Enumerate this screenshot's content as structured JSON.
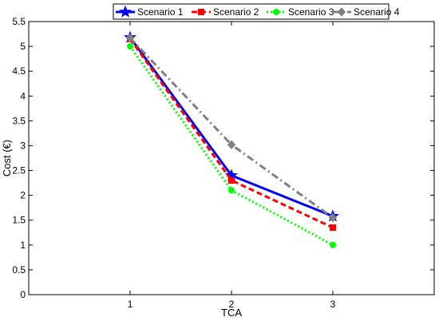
{
  "chart_data": {
    "type": "line",
    "xlabel": "TCA",
    "ylabel": "Cost (€)",
    "x": [
      1,
      2,
      3
    ],
    "xlim": [
      0,
      4
    ],
    "ylim": [
      0,
      5.5
    ],
    "xticks": [
      "1",
      "2",
      "3"
    ],
    "yticks": [
      "0",
      "0.5",
      "1",
      "1.5",
      "2",
      "2.5",
      "3",
      "3.5",
      "4",
      "4.5",
      "5",
      "5.5"
    ],
    "grid": false,
    "legend_position": "top-right (outside)",
    "series": [
      {
        "name": "Scenario 1",
        "values": [
          5.18,
          2.4,
          1.58
        ],
        "color": "#0000ff",
        "marker": "star",
        "dash": "solid"
      },
      {
        "name": "Scenario 2",
        "values": [
          5.15,
          2.3,
          1.35
        ],
        "color": "#ff0000",
        "marker": "square",
        "dash": "dashed"
      },
      {
        "name": "Scenario 3",
        "values": [
          5.0,
          2.1,
          1.0
        ],
        "color": "#00ff00",
        "marker": "circle",
        "dash": "dotted"
      },
      {
        "name": "Scenario 4",
        "values": [
          5.17,
          3.02,
          1.55
        ],
        "color": "#808080",
        "marker": "diamond",
        "dash": "dashdot"
      }
    ]
  }
}
